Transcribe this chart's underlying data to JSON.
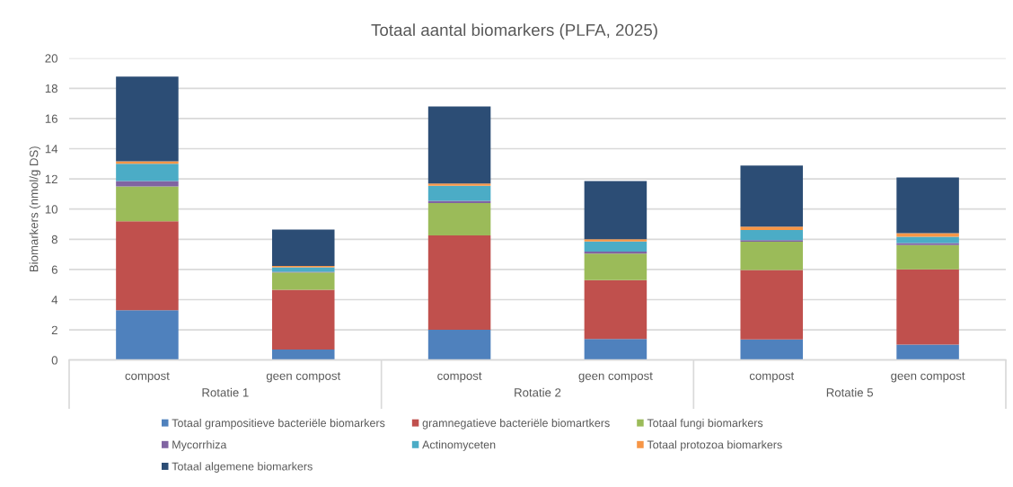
{
  "chart_data": {
    "type": "bar",
    "title": "Totaal aantal biomarkers (PLFA, 2025)",
    "ylabel": "Biomarkers (nmol/g DS)",
    "categories": [
      "compost",
      "geen compost",
      "compost",
      "geen compost",
      "compost",
      "geen compost"
    ],
    "annotations": [
      "Rotatie 1",
      "Rotatie 2",
      "Rotatie 5"
    ],
    "stacked": true,
    "series": [
      {
        "name": "Totaal grampositieve bacteriële biomarkers",
        "color": "#4f81bd",
        "values": [
          3.3,
          0.7,
          2.0,
          1.4,
          1.37,
          1.03
        ]
      },
      {
        "name": "gramnegatieve bacteriële biomartkers",
        "color": "#c0504d",
        "values": [
          5.9,
          3.95,
          6.25,
          3.9,
          4.6,
          4.98
        ]
      },
      {
        "name": "Totaal fungi biomarkers",
        "color": "#9bbb59",
        "values": [
          2.3,
          1.15,
          2.15,
          1.75,
          1.87,
          1.6
        ]
      },
      {
        "name": "Mycorrhiza",
        "color": "#8064a2",
        "values": [
          0.35,
          0.05,
          0.15,
          0.13,
          0.1,
          0.14
        ]
      },
      {
        "name": "Actinomyceten",
        "color": "#4bacc6",
        "values": [
          1.15,
          0.3,
          1.0,
          0.67,
          0.67,
          0.41
        ]
      },
      {
        "name": "Totaal protozoa biomarkers",
        "color": "#f79646",
        "values": [
          0.17,
          0.08,
          0.15,
          0.15,
          0.22,
          0.24
        ]
      },
      {
        "name": "Totaal algemene biomarkers",
        "color": "#2c4d75",
        "values": [
          5.6,
          2.42,
          5.1,
          3.85,
          4.05,
          3.7
        ]
      }
    ],
    "ylim": [
      0,
      20
    ],
    "yticks": [
      0,
      2,
      4,
      6,
      8,
      10,
      12,
      14,
      16,
      18,
      20
    ],
    "grid": "y",
    "legend": "bottom"
  }
}
